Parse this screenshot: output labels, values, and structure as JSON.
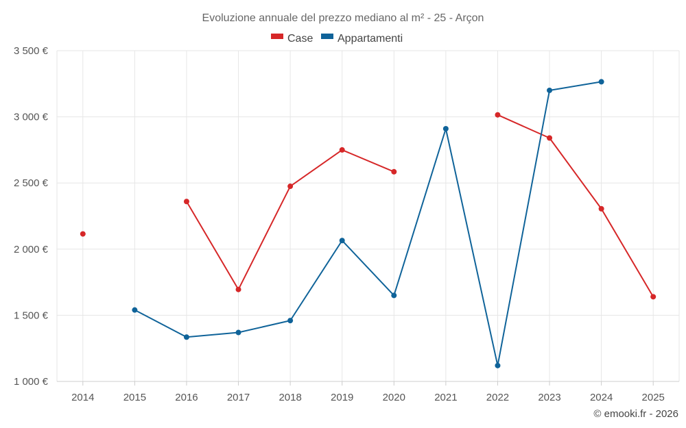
{
  "chart_data": {
    "type": "line",
    "title": "Evoluzione annuale del prezzo mediano al m² - 25 - Arçon",
    "categories": [
      "2014",
      "2015",
      "2016",
      "2017",
      "2018",
      "2019",
      "2020",
      "2021",
      "2022",
      "2023",
      "2024",
      "2025"
    ],
    "y_tick_labels": [
      "1 000 €",
      "1 500 €",
      "2 000 €",
      "2 500 €",
      "3 000 €",
      "3 500 €"
    ],
    "y_ticks": [
      1000,
      1500,
      2000,
      2500,
      3000,
      3500
    ],
    "ylim": [
      1000,
      3500
    ],
    "grid": true,
    "legend_position": "top-center",
    "series": [
      {
        "name": "Case",
        "color": "#d62728",
        "values": [
          2115,
          null,
          2360,
          1695,
          2475,
          2750,
          2585,
          null,
          3015,
          2840,
          2305,
          1640
        ]
      },
      {
        "name": "Appartamenti",
        "color": "#0f6399",
        "values": [
          null,
          1540,
          1335,
          1370,
          1460,
          2065,
          1650,
          2910,
          1120,
          3200,
          3265,
          null
        ]
      }
    ],
    "credit": "© emooki.fr - 2026"
  }
}
